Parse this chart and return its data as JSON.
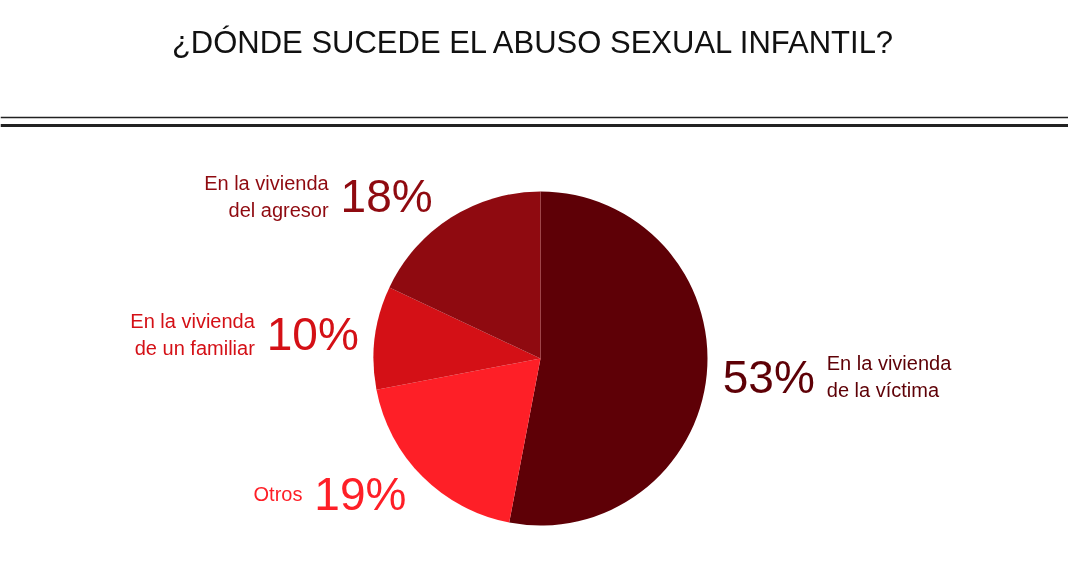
{
  "chart_data": {
    "type": "pie",
    "title": "¿DÓNDE SUCEDE EL ABUSO SEXUAL INFANTIL?",
    "categories": [
      "En la vivienda\nde la víctima",
      "Otros",
      "En la vivienda\nde un familiar",
      "En la vivienda\ndel agresor"
    ],
    "values": [
      53,
      19,
      10,
      18
    ],
    "colors": [
      "#5e0006",
      "#fe1f27",
      "#d41016",
      "#8f0a10"
    ],
    "value_labels": [
      "53%",
      "19%",
      "10%",
      "18%"
    ]
  }
}
